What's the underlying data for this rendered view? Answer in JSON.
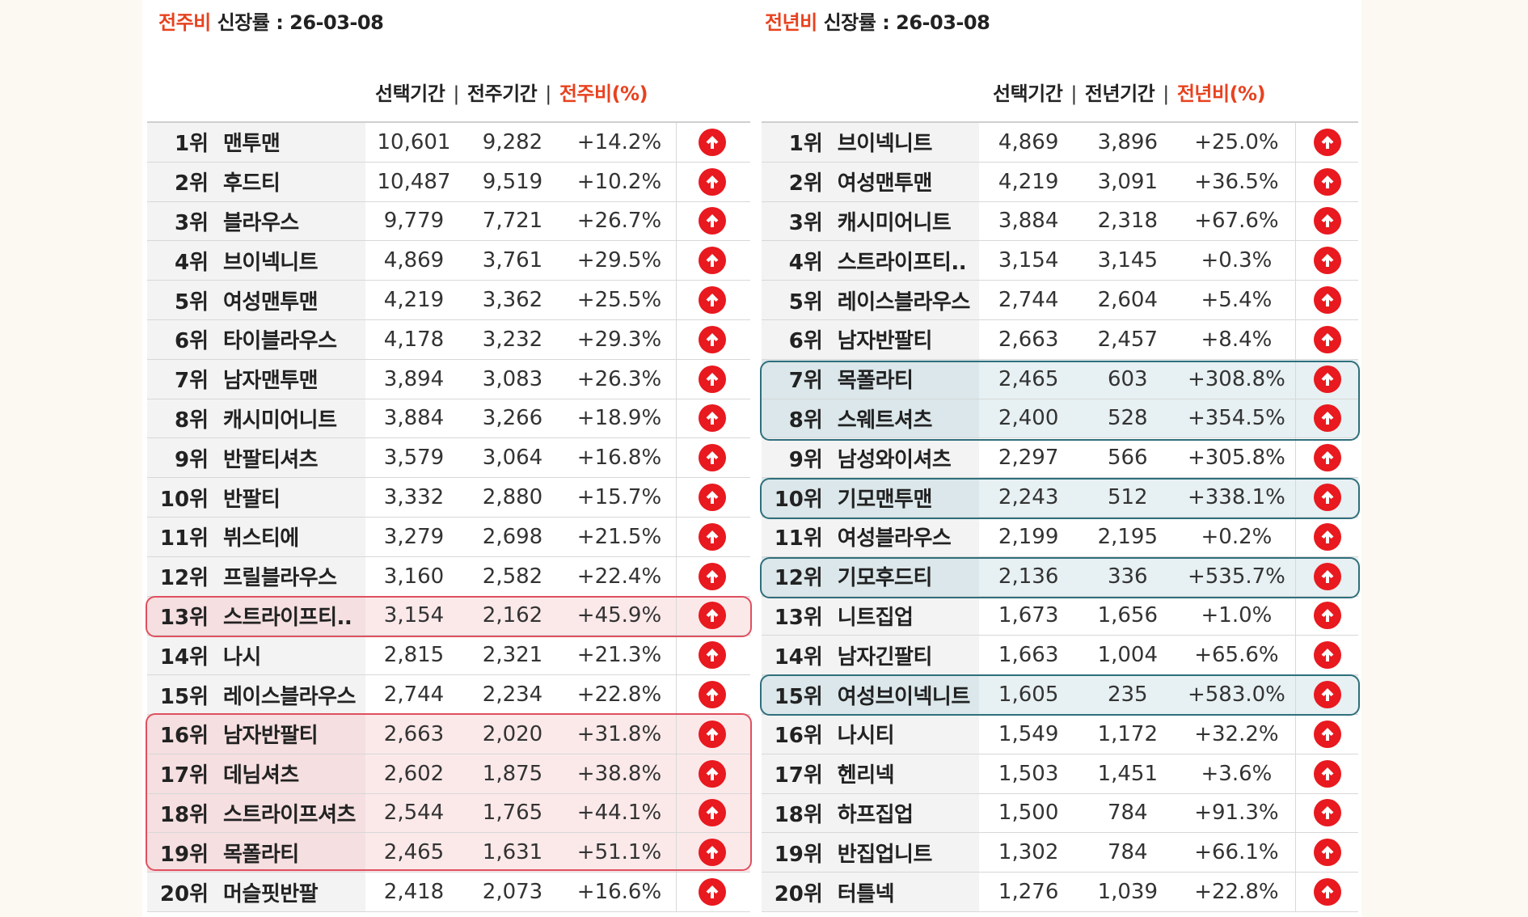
{
  "left": {
    "title_accent": "전주비",
    "title_rest": " 신장률  : 26-03-08",
    "col_selected": "선택기간",
    "col_compare": "전주기간",
    "col_ratio": "전주비(%)",
    "rows": [
      {
        "rank": "1위",
        "name": "맨투맨",
        "selected": "10,601",
        "compare": "9,282",
        "ratio": "+14.2%"
      },
      {
        "rank": "2위",
        "name": "후드티",
        "selected": "10,487",
        "compare": "9,519",
        "ratio": "+10.2%"
      },
      {
        "rank": "3위",
        "name": "블라우스",
        "selected": "9,779",
        "compare": "7,721",
        "ratio": "+26.7%"
      },
      {
        "rank": "4위",
        "name": "브이넥니트",
        "selected": "4,869",
        "compare": "3,761",
        "ratio": "+29.5%"
      },
      {
        "rank": "5위",
        "name": "여성맨투맨",
        "selected": "4,219",
        "compare": "3,362",
        "ratio": "+25.5%"
      },
      {
        "rank": "6위",
        "name": "타이블라우스",
        "selected": "4,178",
        "compare": "3,232",
        "ratio": "+29.3%"
      },
      {
        "rank": "7위",
        "name": "남자맨투맨",
        "selected": "3,894",
        "compare": "3,083",
        "ratio": "+26.3%"
      },
      {
        "rank": "8위",
        "name": "캐시미어니트",
        "selected": "3,884",
        "compare": "3,266",
        "ratio": "+18.9%"
      },
      {
        "rank": "9위",
        "name": "반팔티셔츠",
        "selected": "3,579",
        "compare": "3,064",
        "ratio": "+16.8%"
      },
      {
        "rank": "10위",
        "name": "반팔티",
        "selected": "3,332",
        "compare": "2,880",
        "ratio": "+15.7%"
      },
      {
        "rank": "11위",
        "name": "뷔스티에",
        "selected": "3,279",
        "compare": "2,698",
        "ratio": "+21.5%"
      },
      {
        "rank": "12위",
        "name": "프릴블라우스",
        "selected": "3,160",
        "compare": "2,582",
        "ratio": "+22.4%"
      },
      {
        "rank": "13위",
        "name": "스트라이프티..",
        "selected": "3,154",
        "compare": "2,162",
        "ratio": "+45.9%"
      },
      {
        "rank": "14위",
        "name": "나시",
        "selected": "2,815",
        "compare": "2,321",
        "ratio": "+21.3%"
      },
      {
        "rank": "15위",
        "name": "레이스블라우스",
        "selected": "2,744",
        "compare": "2,234",
        "ratio": "+22.8%"
      },
      {
        "rank": "16위",
        "name": "남자반팔티",
        "selected": "2,663",
        "compare": "2,020",
        "ratio": "+31.8%"
      },
      {
        "rank": "17위",
        "name": "데님셔츠",
        "selected": "2,602",
        "compare": "1,875",
        "ratio": "+38.8%"
      },
      {
        "rank": "18위",
        "name": "스트라이프셔츠",
        "selected": "2,544",
        "compare": "1,765",
        "ratio": "+44.1%"
      },
      {
        "rank": "19위",
        "name": "목폴라티",
        "selected": "2,465",
        "compare": "1,631",
        "ratio": "+51.1%"
      },
      {
        "rank": "20위",
        "name": "머슬핏반팔",
        "selected": "2,418",
        "compare": "2,073",
        "ratio": "+16.6%"
      }
    ]
  },
  "right": {
    "title_accent": "전년비",
    "title_rest": " 신장률 : 26-03-08",
    "col_selected": "선택기간",
    "col_compare": "전년기간",
    "col_ratio": "전년비(%)",
    "rows": [
      {
        "rank": "1위",
        "name": "브이넥니트",
        "selected": "4,869",
        "compare": "3,896",
        "ratio": "+25.0%"
      },
      {
        "rank": "2위",
        "name": "여성맨투맨",
        "selected": "4,219",
        "compare": "3,091",
        "ratio": "+36.5%"
      },
      {
        "rank": "3위",
        "name": "캐시미어니트",
        "selected": "3,884",
        "compare": "2,318",
        "ratio": "+67.6%"
      },
      {
        "rank": "4위",
        "name": "스트라이프티..",
        "selected": "3,154",
        "compare": "3,145",
        "ratio": "+0.3%"
      },
      {
        "rank": "5위",
        "name": "레이스블라우스",
        "selected": "2,744",
        "compare": "2,604",
        "ratio": "+5.4%"
      },
      {
        "rank": "6위",
        "name": "남자반팔티",
        "selected": "2,663",
        "compare": "2,457",
        "ratio": "+8.4%"
      },
      {
        "rank": "7위",
        "name": "목폴라티",
        "selected": "2,465",
        "compare": "603",
        "ratio": "+308.8%"
      },
      {
        "rank": "8위",
        "name": "스웨트셔츠",
        "selected": "2,400",
        "compare": "528",
        "ratio": "+354.5%"
      },
      {
        "rank": "9위",
        "name": "남성와이셔츠",
        "selected": "2,297",
        "compare": "566",
        "ratio": "+305.8%"
      },
      {
        "rank": "10위",
        "name": "기모맨투맨",
        "selected": "2,243",
        "compare": "512",
        "ratio": "+338.1%"
      },
      {
        "rank": "11위",
        "name": "여성블라우스",
        "selected": "2,199",
        "compare": "2,195",
        "ratio": "+0.2%"
      },
      {
        "rank": "12위",
        "name": "기모후드티",
        "selected": "2,136",
        "compare": "336",
        "ratio": "+535.7%"
      },
      {
        "rank": "13위",
        "name": "니트집업",
        "selected": "1,673",
        "compare": "1,656",
        "ratio": "+1.0%"
      },
      {
        "rank": "14위",
        "name": "남자긴팔티",
        "selected": "1,663",
        "compare": "1,004",
        "ratio": "+65.6%"
      },
      {
        "rank": "15위",
        "name": "여성브이넥니트",
        "selected": "1,605",
        "compare": "235",
        "ratio": "+583.0%"
      },
      {
        "rank": "16위",
        "name": "나시티",
        "selected": "1,549",
        "compare": "1,172",
        "ratio": "+32.2%"
      },
      {
        "rank": "17위",
        "name": "헨리넥",
        "selected": "1,503",
        "compare": "1,451",
        "ratio": "+3.6%"
      },
      {
        "rank": "18위",
        "name": "하프집업",
        "selected": "1,500",
        "compare": "784",
        "ratio": "+91.3%"
      },
      {
        "rank": "19위",
        "name": "반집업니트",
        "selected": "1,302",
        "compare": "784",
        "ratio": "+66.1%"
      },
      {
        "rank": "20위",
        "name": "터틀넥",
        "selected": "1,276",
        "compare": "1,039",
        "ratio": "+22.8%"
      }
    ]
  },
  "colors": {
    "accent": "#e8421f",
    "up_arrow": "#e8191f",
    "highlight_pink": "#e0505f",
    "highlight_blue": "#2f6f7c"
  },
  "icons": {
    "trend": "arrow-up-circle-icon"
  }
}
